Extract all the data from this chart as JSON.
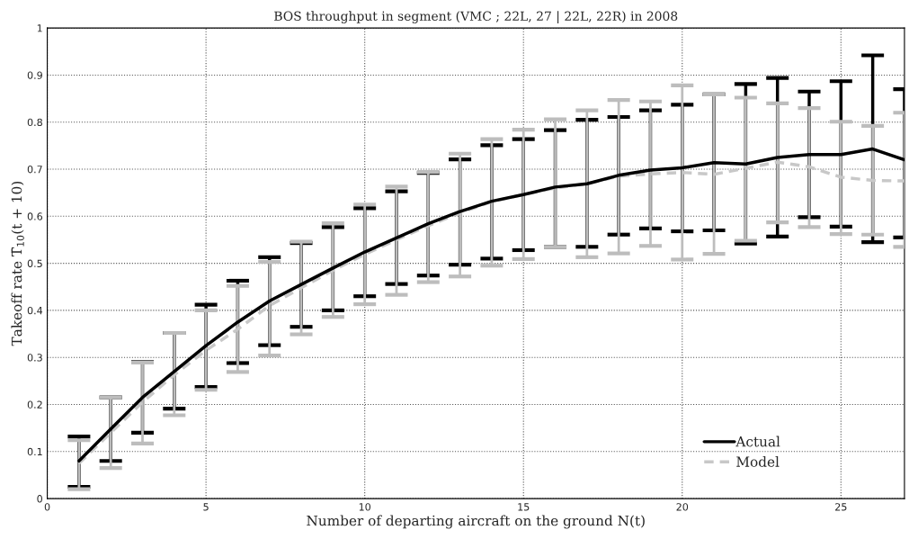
{
  "chart_data": {
    "type": "line",
    "title": "BOS throughput in segment (VMC ; 22L, 27 | 22L, 22R) in 2008",
    "xlabel": "Number of departing aircraft on the ground N(t)",
    "ylabel": "Takeoff rate T̄$_{10}$(t + 10)",
    "x": [
      1,
      2,
      3,
      4,
      5,
      6,
      7,
      8,
      9,
      10,
      11,
      12,
      13,
      14,
      15,
      16,
      17,
      18,
      19,
      20,
      21,
      22,
      23,
      24,
      25,
      26,
      27
    ],
    "series": [
      {
        "name": "Actual",
        "color": "#000000",
        "line_style": "solid",
        "values": [
          0.08,
          0.148,
          0.215,
          0.27,
          0.325,
          0.375,
          0.42,
          0.455,
          0.49,
          0.524,
          0.554,
          0.584,
          0.61,
          0.632,
          0.646,
          0.662,
          0.669,
          0.687,
          0.698,
          0.703,
          0.714,
          0.711,
          0.725,
          0.731,
          0.731,
          0.743,
          0.72
        ],
        "errors": [
          [
            0.025,
            0.132
          ],
          [
            0.08,
            0.215
          ],
          [
            0.14,
            0.29
          ],
          [
            0.191,
            0.352
          ],
          [
            0.237,
            0.412
          ],
          [
            0.288,
            0.463
          ],
          [
            0.326,
            0.513
          ],
          [
            0.365,
            0.543
          ],
          [
            0.4,
            0.577
          ],
          [
            0.43,
            0.617
          ],
          [
            0.456,
            0.653
          ],
          [
            0.474,
            0.692
          ],
          [
            0.497,
            0.721
          ],
          [
            0.51,
            0.751
          ],
          [
            0.528,
            0.764
          ],
          [
            0.535,
            0.783
          ],
          [
            0.535,
            0.805
          ],
          [
            0.561,
            0.811
          ],
          [
            0.574,
            0.825
          ],
          [
            0.568,
            0.837
          ],
          [
            0.57,
            0.859
          ],
          [
            0.542,
            0.881
          ],
          [
            0.557,
            0.894
          ],
          [
            0.598,
            0.865
          ],
          [
            0.578,
            0.887
          ],
          [
            0.545,
            0.942
          ],
          [
            0.555,
            0.87
          ]
        ]
      },
      {
        "name": "Model",
        "color": "#c8c8c8",
        "line_style": "dashed",
        "values": [
          0.075,
          0.14,
          0.205,
          0.263,
          0.315,
          0.36,
          0.41,
          0.448,
          0.485,
          0.519,
          0.55,
          0.58,
          0.607,
          0.631,
          0.646,
          0.66,
          0.669,
          0.685,
          0.69,
          0.693,
          0.689,
          0.702,
          0.715,
          0.705,
          0.683,
          0.676,
          0.675
        ],
        "errors": [
          [
            0.02,
            0.124
          ],
          [
            0.065,
            0.215
          ],
          [
            0.117,
            0.289
          ],
          [
            0.177,
            0.352
          ],
          [
            0.231,
            0.4
          ],
          [
            0.269,
            0.452
          ],
          [
            0.304,
            0.503
          ],
          [
            0.349,
            0.546
          ],
          [
            0.386,
            0.585
          ],
          [
            0.413,
            0.625
          ],
          [
            0.433,
            0.663
          ],
          [
            0.46,
            0.694
          ],
          [
            0.472,
            0.733
          ],
          [
            0.495,
            0.764
          ],
          [
            0.509,
            0.784
          ],
          [
            0.535,
            0.806
          ],
          [
            0.513,
            0.825
          ],
          [
            0.521,
            0.847
          ],
          [
            0.537,
            0.844
          ],
          [
            0.508,
            0.878
          ],
          [
            0.52,
            0.859
          ],
          [
            0.548,
            0.852
          ],
          [
            0.587,
            0.84
          ],
          [
            0.577,
            0.83
          ],
          [
            0.562,
            0.801
          ],
          [
            0.561,
            0.792
          ],
          [
            0.535,
            0.82
          ]
        ]
      }
    ],
    "xlim": [
      0,
      27
    ],
    "ylim": [
      0,
      1
    ],
    "xticks": [
      0,
      5,
      10,
      15,
      20,
      25
    ],
    "yticks": [
      0,
      0.1,
      0.2,
      0.3,
      0.4,
      0.5,
      0.6,
      0.7,
      0.8,
      0.9,
      1
    ],
    "grid": true,
    "legend": "bottom right",
    "marker": "none"
  }
}
